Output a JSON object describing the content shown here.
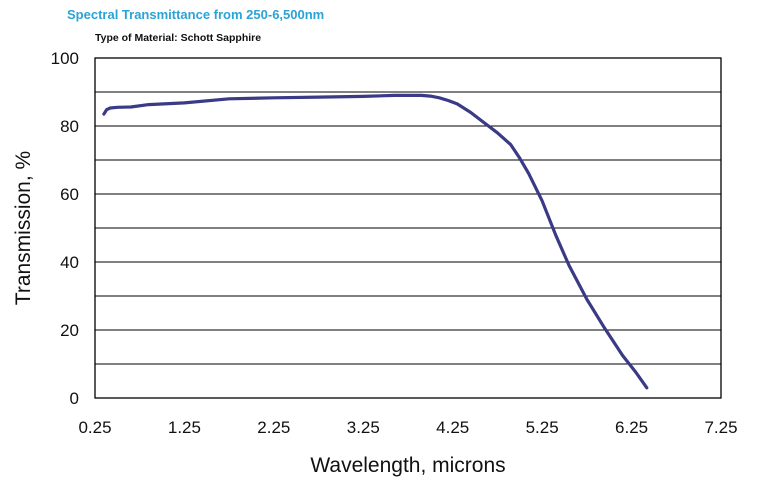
{
  "chart_data": {
    "type": "line",
    "title": "Spectral Transmittance from 250-6,500nm",
    "subtitle": "Type of Material: Schott Sapphire",
    "xlabel": "Wavelength, microns",
    "ylabel": "Transmission, %",
    "xlim": [
      0.25,
      7.25
    ],
    "ylim": [
      0,
      100
    ],
    "x_ticks": [
      0.25,
      1.25,
      2.25,
      3.25,
      4.25,
      5.25,
      6.25,
      7.25
    ],
    "x_tick_labels": [
      "0.25",
      "1.25",
      "2.25",
      "3.25",
      "4.25",
      "5.25",
      "6.25",
      "7.25"
    ],
    "y_ticks": [
      0,
      20,
      40,
      60,
      80,
      100
    ],
    "y_tick_labels": [
      "0",
      "20",
      "40",
      "60",
      "80",
      "100"
    ],
    "y_gridlines": [
      10,
      20,
      30,
      40,
      50,
      60,
      70,
      80,
      90
    ],
    "grid": true,
    "color": "#3a3a86",
    "series": [
      {
        "name": "Schott Sapphire",
        "x": [
          0.35,
          0.38,
          0.42,
          0.5,
          0.65,
          0.85,
          1.25,
          1.75,
          2.25,
          2.75,
          3.25,
          3.6,
          3.9,
          4.0,
          4.1,
          4.2,
          4.3,
          4.45,
          4.6,
          4.75,
          4.9,
          5.0,
          5.1,
          5.25,
          5.4,
          5.55,
          5.75,
          5.95,
          6.15,
          6.3,
          6.42
        ],
        "y": [
          83.5,
          84.8,
          85.3,
          85.5,
          85.6,
          86.3,
          86.8,
          88.0,
          88.3,
          88.5,
          88.7,
          89.0,
          89.0,
          88.8,
          88.3,
          87.5,
          86.5,
          84.0,
          81.0,
          78.0,
          74.5,
          70.5,
          66.0,
          58.0,
          48.0,
          39.0,
          29.0,
          20.5,
          12.5,
          7.5,
          3.0
        ]
      }
    ]
  }
}
